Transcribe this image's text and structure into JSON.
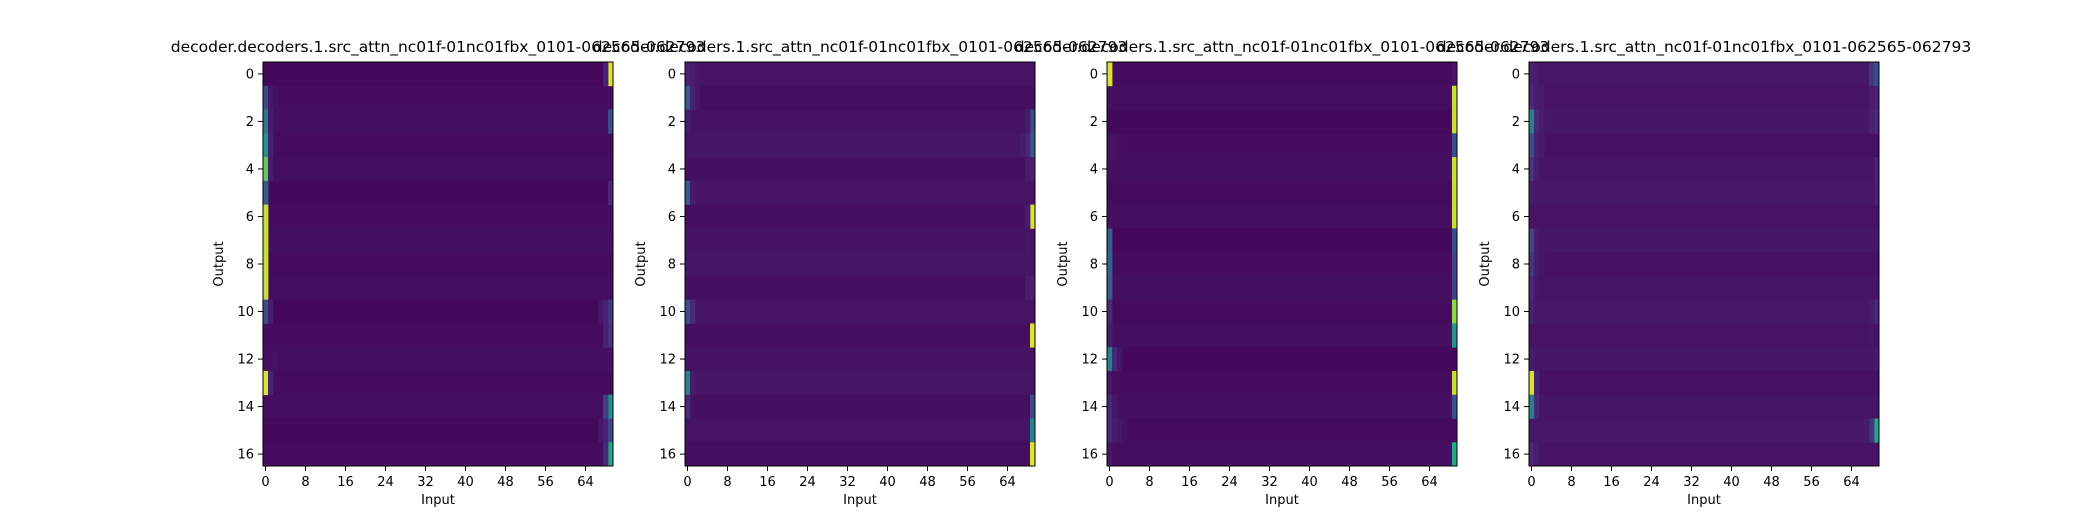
{
  "chart_data": [
    {
      "type": "heatmap",
      "title": "decoder.decoders.1.src_attn_nc01f-01nc01fbx_0101-062565-062793",
      "xlabel": "Input",
      "ylabel": "Output",
      "n_rows": 17,
      "n_cols": 70,
      "x_ticks": [
        0,
        8,
        16,
        24,
        32,
        40,
        48,
        56,
        64
      ],
      "y_ticks": [
        0,
        2,
        4,
        6,
        8,
        10,
        12,
        14,
        16
      ],
      "colormap": "viridis",
      "value_range": [
        0,
        1
      ],
      "background_level": 0.03,
      "cells": [
        [
          0,
          69,
          0.97
        ],
        [
          0,
          68,
          0.12
        ],
        [
          1,
          0,
          0.28
        ],
        [
          1,
          1,
          0.08
        ],
        [
          1,
          2,
          0.06
        ],
        [
          2,
          0,
          0.5
        ],
        [
          2,
          1,
          0.1
        ],
        [
          2,
          69,
          0.3
        ],
        [
          3,
          0,
          0.65
        ],
        [
          3,
          1,
          0.12
        ],
        [
          4,
          0,
          0.85
        ],
        [
          4,
          1,
          0.1
        ],
        [
          5,
          0,
          0.35
        ],
        [
          5,
          69,
          0.15
        ],
        [
          6,
          0,
          0.95
        ],
        [
          7,
          0,
          0.95
        ],
        [
          8,
          0,
          0.95
        ],
        [
          9,
          0,
          0.95
        ],
        [
          10,
          0,
          0.3
        ],
        [
          10,
          1,
          0.1
        ],
        [
          10,
          67,
          0.08
        ],
        [
          10,
          68,
          0.12
        ],
        [
          10,
          69,
          0.2
        ],
        [
          11,
          68,
          0.12
        ],
        [
          11,
          69,
          0.18
        ],
        [
          12,
          1,
          0.06
        ],
        [
          12,
          2,
          0.06
        ],
        [
          12,
          3,
          0.05
        ],
        [
          13,
          0,
          0.97
        ],
        [
          13,
          1,
          0.12
        ],
        [
          14,
          69,
          0.62
        ],
        [
          14,
          68,
          0.22
        ],
        [
          15,
          67,
          0.08
        ],
        [
          15,
          68,
          0.12
        ],
        [
          15,
          69,
          0.25
        ],
        [
          16,
          69,
          0.75
        ],
        [
          16,
          68,
          0.15
        ]
      ]
    },
    {
      "type": "heatmap",
      "title": "decoder.decoders.1.src_attn_nc01f-01nc01fbx_0101-062565-062793",
      "xlabel": "Input",
      "ylabel": "Output",
      "n_rows": 17,
      "n_cols": 70,
      "x_ticks": [
        0,
        8,
        16,
        24,
        32,
        40,
        48,
        56,
        64
      ],
      "y_ticks": [
        0,
        2,
        4,
        6,
        8,
        10,
        12,
        14,
        16
      ],
      "colormap": "viridis",
      "value_range": [
        0,
        1
      ],
      "background_level": 0.05,
      "cells": [
        [
          0,
          0,
          0.12
        ],
        [
          0,
          1,
          0.1
        ],
        [
          0,
          2,
          0.08
        ],
        [
          0,
          3,
          0.07
        ],
        [
          1,
          0,
          0.35
        ],
        [
          1,
          1,
          0.12
        ],
        [
          1,
          2,
          0.08
        ],
        [
          2,
          0,
          0.1
        ],
        [
          2,
          69,
          0.3
        ],
        [
          2,
          68,
          0.1
        ],
        [
          3,
          69,
          0.35
        ],
        [
          3,
          68,
          0.15
        ],
        [
          3,
          67,
          0.1
        ],
        [
          4,
          68,
          0.1
        ],
        [
          4,
          69,
          0.12
        ],
        [
          5,
          0,
          0.35
        ],
        [
          5,
          1,
          0.1
        ],
        [
          6,
          69,
          0.97
        ],
        [
          6,
          68,
          0.1
        ],
        [
          7,
          68,
          0.08
        ],
        [
          8,
          68,
          0.08
        ],
        [
          9,
          68,
          0.1
        ],
        [
          9,
          69,
          0.12
        ],
        [
          10,
          0,
          0.3
        ],
        [
          10,
          1,
          0.15
        ],
        [
          11,
          69,
          0.97
        ],
        [
          13,
          0,
          0.55
        ],
        [
          13,
          1,
          0.1
        ],
        [
          14,
          0,
          0.15
        ],
        [
          14,
          69,
          0.28
        ],
        [
          15,
          69,
          0.55
        ],
        [
          16,
          69,
          0.97
        ]
      ]
    },
    {
      "type": "heatmap",
      "title": "decoder.decoders.1.src_attn_nc01f-01nc01fbx_0101-062565-062793",
      "xlabel": "Input",
      "ylabel": "Output",
      "n_rows": 17,
      "n_cols": 70,
      "x_ticks": [
        0,
        8,
        16,
        24,
        32,
        40,
        48,
        56,
        64
      ],
      "y_ticks": [
        0,
        2,
        4,
        6,
        8,
        10,
        12,
        14,
        16
      ],
      "colormap": "viridis",
      "value_range": [
        0,
        1
      ],
      "background_level": 0.03,
      "cells": [
        [
          0,
          0,
          0.97
        ],
        [
          0,
          69,
          0.08
        ],
        [
          1,
          69,
          0.95
        ],
        [
          2,
          69,
          0.95
        ],
        [
          3,
          69,
          0.3
        ],
        [
          3,
          0,
          0.06
        ],
        [
          3,
          1,
          0.06
        ],
        [
          3,
          2,
          0.05
        ],
        [
          4,
          69,
          0.95
        ],
        [
          5,
          69,
          0.95
        ],
        [
          6,
          69,
          0.95
        ],
        [
          7,
          0,
          0.35
        ],
        [
          7,
          69,
          0.3
        ],
        [
          8,
          0,
          0.4
        ],
        [
          8,
          69,
          0.25
        ],
        [
          9,
          0,
          0.35
        ],
        [
          9,
          69,
          0.25
        ],
        [
          10,
          0,
          0.15
        ],
        [
          10,
          69,
          0.9
        ],
        [
          11,
          0,
          0.1
        ],
        [
          11,
          69,
          0.65
        ],
        [
          12,
          0,
          0.55
        ],
        [
          12,
          1,
          0.15
        ],
        [
          12,
          2,
          0.08
        ],
        [
          13,
          69,
          0.95
        ],
        [
          13,
          0,
          0.08
        ],
        [
          14,
          0,
          0.15
        ],
        [
          14,
          1,
          0.08
        ],
        [
          14,
          69,
          0.3
        ],
        [
          15,
          0,
          0.15
        ],
        [
          15,
          1,
          0.1
        ],
        [
          15,
          2,
          0.08
        ],
        [
          15,
          3,
          0.06
        ],
        [
          16,
          69,
          0.75
        ],
        [
          16,
          0,
          0.08
        ]
      ]
    },
    {
      "type": "heatmap",
      "title": "decoder.decoders.1.src_attn_nc01f-01nc01fbx_0101-062565-062793",
      "xlabel": "Input",
      "ylabel": "Output",
      "n_rows": 17,
      "n_cols": 70,
      "x_ticks": [
        0,
        8,
        16,
        24,
        32,
        40,
        48,
        56,
        64
      ],
      "y_ticks": [
        0,
        2,
        4,
        6,
        8,
        10,
        12,
        14,
        16
      ],
      "colormap": "viridis",
      "value_range": [
        0,
        1
      ],
      "background_level": 0.06,
      "cells": [
        [
          0,
          0,
          0.12
        ],
        [
          0,
          1,
          0.1
        ],
        [
          0,
          2,
          0.08
        ],
        [
          0,
          68,
          0.2
        ],
        [
          0,
          69,
          0.3
        ],
        [
          1,
          0,
          0.15
        ],
        [
          1,
          1,
          0.1
        ],
        [
          1,
          2,
          0.1
        ],
        [
          1,
          68,
          0.1
        ],
        [
          1,
          69,
          0.12
        ],
        [
          2,
          0,
          0.55
        ],
        [
          2,
          1,
          0.15
        ],
        [
          2,
          2,
          0.1
        ],
        [
          2,
          68,
          0.12
        ],
        [
          2,
          69,
          0.15
        ],
        [
          3,
          0,
          0.3
        ],
        [
          3,
          1,
          0.12
        ],
        [
          3,
          2,
          0.1
        ],
        [
          4,
          0,
          0.2
        ],
        [
          4,
          1,
          0.1
        ],
        [
          4,
          69,
          0.12
        ],
        [
          5,
          0,
          0.1
        ],
        [
          5,
          69,
          0.12
        ],
        [
          7,
          0,
          0.25
        ],
        [
          7,
          1,
          0.1
        ],
        [
          7,
          2,
          0.08
        ],
        [
          8,
          0,
          0.2
        ],
        [
          8,
          1,
          0.1
        ],
        [
          8,
          2,
          0.08
        ],
        [
          9,
          0,
          0.15
        ],
        [
          9,
          1,
          0.08
        ],
        [
          10,
          0,
          0.12
        ],
        [
          10,
          68,
          0.1
        ],
        [
          10,
          69,
          0.15
        ],
        [
          11,
          68,
          0.08
        ],
        [
          12,
          0,
          0.1
        ],
        [
          12,
          69,
          0.1
        ],
        [
          13,
          0,
          0.97
        ],
        [
          13,
          1,
          0.12
        ],
        [
          14,
          0,
          0.55
        ],
        [
          14,
          1,
          0.15
        ],
        [
          14,
          2,
          0.08
        ],
        [
          15,
          69,
          0.75
        ],
        [
          15,
          68,
          0.2
        ],
        [
          15,
          67,
          0.1
        ],
        [
          16,
          0,
          0.15
        ],
        [
          16,
          1,
          0.1
        ]
      ]
    }
  ]
}
